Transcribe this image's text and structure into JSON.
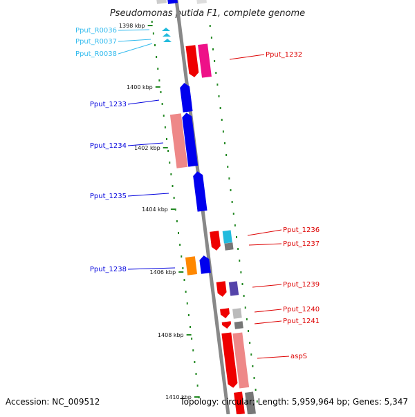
{
  "title": "Pseudomonas putida F1, complete genome",
  "footer": {
    "accession": "Accession: NC_009512",
    "topology": "Topology: circular; Length: 5,959,964 bp; Genes: 5,347"
  },
  "ticks": [
    "1398 kbp",
    "1400 kbp",
    "1402 kbp",
    "1404 kbp",
    "1406 kbp",
    "1408 kbp",
    "1410 kbp"
  ],
  "left_genes": [
    {
      "name": "Pput_R0036",
      "color": "#33bbee",
      "kind": "trna"
    },
    {
      "name": "Pput_R0037",
      "color": "#33bbee",
      "kind": "trna"
    },
    {
      "name": "Pput_R0038",
      "color": "#33bbee",
      "kind": "trna"
    },
    {
      "name": "Pput_1233",
      "color": "#0000dd",
      "kind": "cds"
    },
    {
      "name": "Pput_1234",
      "color": "#0000dd",
      "kind": "cds"
    },
    {
      "name": "Pput_1235",
      "color": "#0000dd",
      "kind": "cds"
    },
    {
      "name": "Pput_1238",
      "color": "#0000dd",
      "kind": "cds"
    }
  ],
  "right_genes": [
    {
      "name": "Pput_1232",
      "color": "#dd0000"
    },
    {
      "name": "Pput_1236",
      "color": "#dd0000"
    },
    {
      "name": "Pput_1237",
      "color": "#dd0000"
    },
    {
      "name": "Pput_1239",
      "color": "#dd0000"
    },
    {
      "name": "Pput_1240",
      "color": "#dd0000"
    },
    {
      "name": "Pput_1241",
      "color": "#dd0000"
    },
    {
      "name": "aspS",
      "color": "#dd0000"
    }
  ],
  "colors": {
    "backbone": "#888888",
    "tick": "#228822",
    "dots": "#228822",
    "forward_cds": "#ee0000",
    "forward_alt": "#ee1188",
    "reverse_cds": "#0000ee",
    "pink_box": "#ee8888",
    "orange_box": "#ff8800",
    "cyan_box": "#22bbdd",
    "purple_box": "#5544aa",
    "gray_box": "#777777",
    "lightgray_box": "#bbbbbb"
  }
}
